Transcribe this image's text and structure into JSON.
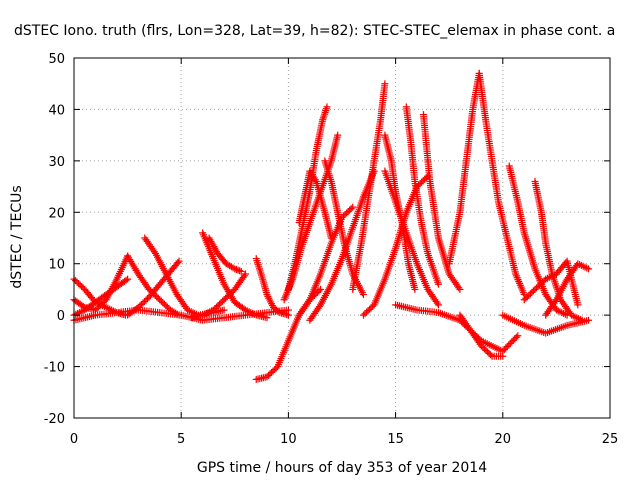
{
  "chart_data": {
    "type": "scatter",
    "title": "dSTEC Iono. truth (flrs, Lon=328, Lat=39, h=82): STEC-STEC_elemax in phase cont. a",
    "xlabel": "GPS time / hours of day 353 of year 2014",
    "ylabel": "dSTEC  / TECUs",
    "xlim": [
      0,
      25
    ],
    "ylim": [
      -20,
      50
    ],
    "x_ticks": [
      "0",
      "5",
      "10",
      "15",
      "20",
      "25"
    ],
    "y_ticks": [
      "-20",
      "-10",
      "0",
      "10",
      "20",
      "30",
      "40",
      "50"
    ],
    "grid": true,
    "marker": "+",
    "series_color": "#ff0000",
    "series": [
      {
        "x": [
          0.0,
          0.5,
          1.0,
          1.5,
          2.0,
          2.4
        ],
        "y": [
          7,
          5,
          2.5,
          1.5,
          0.5,
          0
        ]
      },
      {
        "x": [
          0.0,
          0.5,
          1.0,
          1.5,
          2.0,
          2.5
        ],
        "y": [
          3,
          1.5,
          1,
          3,
          7,
          11.5
        ]
      },
      {
        "x": [
          0.0,
          0.5,
          1.0,
          1.5,
          2.0,
          2.5
        ],
        "y": [
          0,
          1,
          2.5,
          4,
          5.5,
          7
        ]
      },
      {
        "x": [
          0.0,
          1.0,
          2.0,
          3.0,
          4.0,
          5.0
        ],
        "y": [
          -1,
          0,
          0.5,
          1,
          0.5,
          0
        ]
      },
      {
        "x": [
          2.5,
          3.0,
          3.5,
          4.0,
          4.5,
          4.9
        ],
        "y": [
          11.5,
          8,
          5,
          3,
          1,
          0
        ]
      },
      {
        "x": [
          3.3,
          3.8,
          4.3,
          4.8,
          5.3,
          5.8,
          6.5,
          7.0
        ],
        "y": [
          15,
          12,
          8,
          4,
          1,
          0,
          0.5,
          1
        ]
      },
      {
        "x": [
          2.5,
          3.0,
          3.5,
          4.0,
          4.5,
          4.9
        ],
        "y": [
          0,
          1.5,
          3.5,
          6,
          8.5,
          10.5
        ]
      },
      {
        "x": [
          5.0,
          6.0,
          7.0,
          8.0,
          9.0,
          10.0
        ],
        "y": [
          0,
          -1,
          -0.5,
          0,
          0.5,
          1
        ]
      },
      {
        "x": [
          6.0,
          6.5,
          7.0,
          7.5,
          8.0,
          8.5,
          9.0
        ],
        "y": [
          16,
          11,
          6,
          2.5,
          1,
          0,
          -0.5
        ]
      },
      {
        "x": [
          6.3,
          6.7,
          7.1,
          7.5,
          7.8
        ],
        "y": [
          15,
          12,
          10,
          9,
          8.5
        ]
      },
      {
        "x": [
          5.5,
          6.0,
          6.5,
          7.0,
          7.5,
          8.0
        ],
        "y": [
          -0.5,
          0,
          1,
          3,
          5,
          8
        ]
      },
      {
        "x": [
          8.5,
          8.8,
          9.0,
          9.3,
          9.6,
          10.0
        ],
        "y": [
          11,
          7,
          4,
          1.5,
          0.5,
          0
        ]
      },
      {
        "x": [
          8.5,
          9.0,
          9.5,
          10.0,
          10.5,
          11.0,
          11.5
        ],
        "y": [
          -12.5,
          -12,
          -10,
          -5,
          0,
          3,
          5
        ]
      },
      {
        "x": [
          10.0,
          10.3,
          10.6,
          11.0,
          11.3,
          11.6,
          11.8
        ],
        "y": [
          5,
          10,
          16,
          24,
          32,
          38,
          40.5
        ]
      },
      {
        "x": [
          9.8,
          10.2,
          10.6,
          11.0,
          11.5,
          12.0,
          12.3
        ],
        "y": [
          3,
          7,
          13,
          18,
          24,
          30,
          35
        ]
      },
      {
        "x": [
          10.5,
          10.8,
          11.0,
          11.3,
          11.7,
          12.0
        ],
        "y": [
          18,
          24,
          28,
          26,
          20,
          15
        ]
      },
      {
        "x": [
          11.0,
          11.5,
          12.0,
          12.5,
          13.0,
          13.5,
          14.0
        ],
        "y": [
          -1,
          2,
          6,
          11,
          17,
          23,
          28
        ]
      },
      {
        "x": [
          10.5,
          11.0,
          11.5,
          12.0,
          12.5,
          13.0
        ],
        "y": [
          0,
          3,
          8,
          14,
          19,
          21
        ]
      },
      {
        "x": [
          11.7,
          12.0,
          12.3,
          12.6,
          13.0,
          13.5
        ],
        "y": [
          30,
          26,
          20,
          14,
          8,
          4
        ]
      },
      {
        "x": [
          13.0,
          13.4,
          13.7,
          14.0,
          14.3,
          14.5
        ],
        "y": [
          5,
          14,
          22,
          30,
          38,
          45
        ]
      },
      {
        "x": [
          13.5,
          14.0,
          14.5,
          15.0,
          15.5,
          16.0,
          16.5
        ],
        "y": [
          0,
          2,
          7,
          13,
          20,
          25,
          27
        ]
      },
      {
        "x": [
          14.5,
          14.8,
          15.0,
          15.3,
          15.6,
          15.9
        ],
        "y": [
          35,
          30,
          24,
          18,
          10,
          5
        ]
      },
      {
        "x": [
          14.5,
          15.0,
          15.5,
          16.0,
          16.5,
          17.0
        ],
        "y": [
          28,
          22,
          16,
          10,
          5,
          2
        ]
      },
      {
        "x": [
          15.5,
          15.7,
          15.9,
          16.2,
          16.5,
          17.0
        ],
        "y": [
          40.5,
          34,
          26,
          18,
          12,
          6
        ]
      },
      {
        "x": [
          16.3,
          16.6,
          17.0,
          17.5,
          18.0
        ],
        "y": [
          39,
          26,
          15,
          8,
          5
        ]
      },
      {
        "x": [
          15.0,
          16.0,
          17.0,
          18.0,
          19.0,
          20.0,
          20.7
        ],
        "y": [
          2,
          1,
          0.5,
          -1,
          -5,
          -7,
          -4
        ]
      },
      {
        "x": [
          17.5,
          18.0,
          18.3,
          18.6,
          18.9
        ],
        "y": [
          10,
          20,
          30,
          40,
          47
        ]
      },
      {
        "x": [
          18.9,
          19.2,
          19.5,
          19.8,
          20.2,
          20.6,
          21.0
        ],
        "y": [
          47,
          38,
          30,
          22,
          15,
          8,
          4
        ]
      },
      {
        "x": [
          18.0,
          18.5,
          19.0,
          19.5,
          20.0
        ],
        "y": [
          0,
          -3,
          -6,
          -8,
          -8
        ]
      },
      {
        "x": [
          20.3,
          20.7,
          21.0,
          21.5,
          22.0,
          22.5,
          23.0
        ],
        "y": [
          29,
          22,
          16,
          9,
          4,
          1,
          0
        ]
      },
      {
        "x": [
          21.5,
          21.8,
          22.0,
          22.3,
          22.7,
          23.2,
          23.7
        ],
        "y": [
          26,
          20,
          14,
          8,
          3,
          0,
          -1
        ]
      },
      {
        "x": [
          20.0,
          21.0,
          22.0,
          23.0,
          24.0
        ],
        "y": [
          0,
          -2,
          -3.5,
          -2,
          -1
        ]
      },
      {
        "x": [
          22.0,
          22.5,
          23.0,
          23.5,
          24.0
        ],
        "y": [
          0,
          3,
          7,
          10,
          9
        ]
      },
      {
        "x": [
          21.0,
          21.5,
          22.0,
          22.5,
          23.0,
          23.5
        ],
        "y": [
          3,
          5,
          7,
          8,
          10.5,
          2
        ]
      }
    ]
  }
}
